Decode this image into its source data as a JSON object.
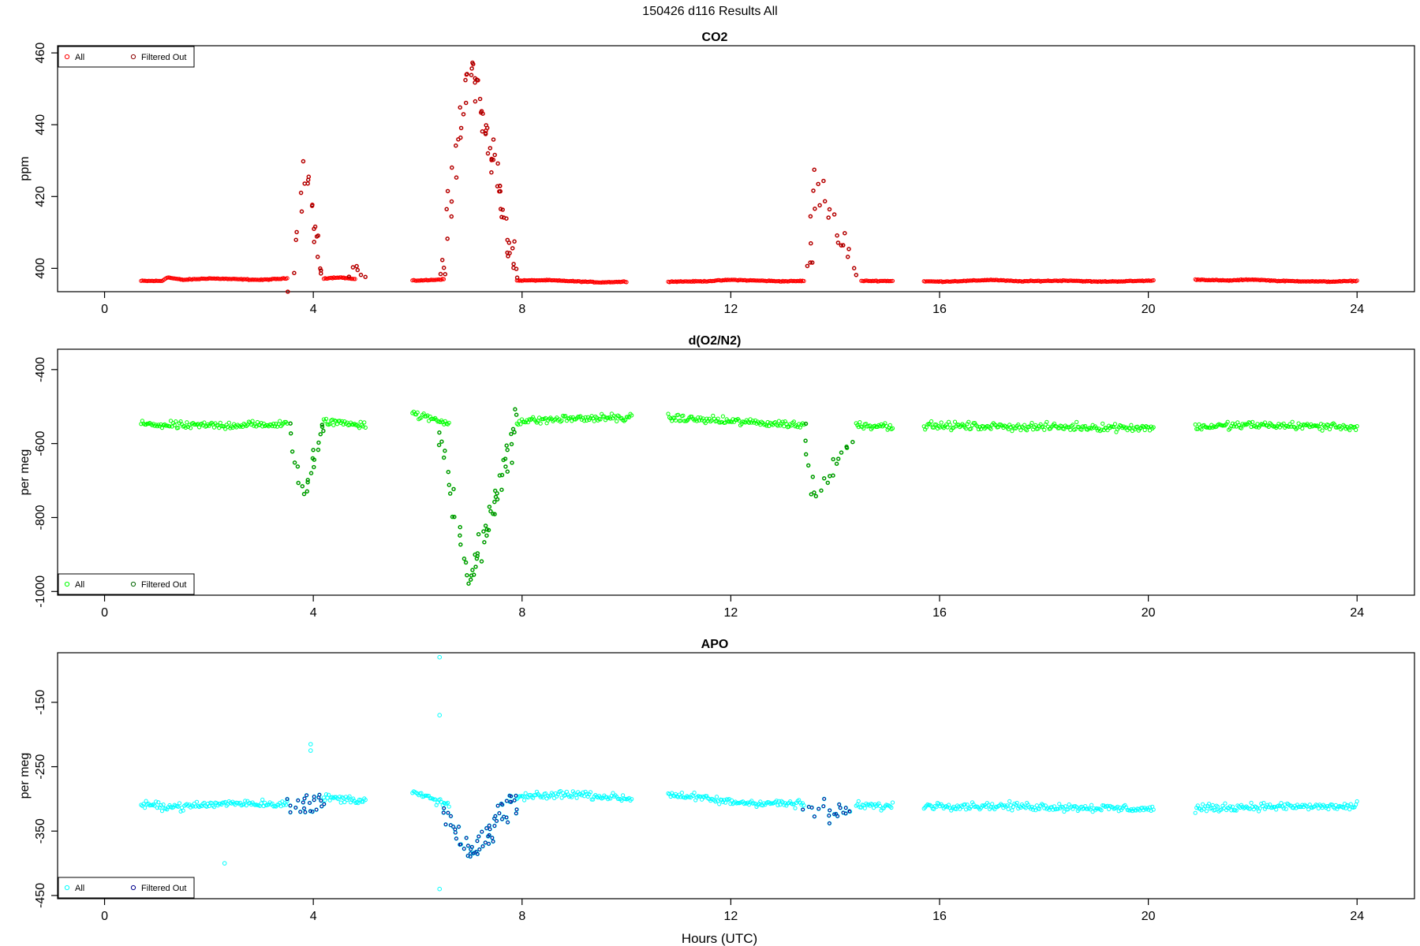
{
  "figure": {
    "title": "150426   d116   Results All",
    "xlabel": "Hours (UTC)"
  },
  "chart_data": [
    {
      "type": "scatter",
      "title": "CO2",
      "ylabel": "ppm",
      "xlim": [
        -0.9,
        25.1
      ],
      "ylim": [
        393.5,
        462
      ],
      "xticks": [
        0,
        4,
        8,
        12,
        16,
        20,
        24
      ],
      "yticks": [
        400,
        420,
        440,
        460
      ],
      "legend_position": "top-left",
      "colors": {
        "all": "#ff0000",
        "filtered": "#8b0000"
      },
      "series": [
        {
          "name": "All",
          "marker": "open-circle",
          "color": "#ff0000"
        },
        {
          "name": "Filtered Out",
          "marker": "open-circle",
          "color": "#8b0000"
        }
      ],
      "baseline_segments": [
        {
          "x": [
            0.7,
            1.1,
            1.2,
            1.5,
            2.0,
            2.5,
            3.0,
            3.5
          ],
          "y": [
            396.5,
            396.5,
            397.5,
            396.8,
            397.2,
            397.0,
            396.8,
            397.2
          ]
        },
        {
          "x": [
            4.2,
            4.5,
            4.8
          ],
          "y": [
            397.2,
            397.5,
            397.0
          ]
        },
        {
          "x": [
            5.9,
            6.2,
            6.5
          ],
          "y": [
            396.6,
            396.7,
            397.0
          ]
        },
        {
          "x": [
            7.9,
            8.5,
            9.0,
            9.5,
            10.0
          ],
          "y": [
            396.6,
            396.7,
            396.4,
            396.1,
            396.3
          ]
        },
        {
          "x": [
            10.8,
            11.5,
            12.0,
            12.5,
            13.0,
            13.4
          ],
          "y": [
            396.3,
            396.4,
            396.8,
            396.6,
            396.4,
            396.5
          ]
        },
        {
          "x": [
            14.5,
            15.1
          ],
          "y": [
            396.5,
            396.5
          ]
        },
        {
          "x": [
            15.7,
            16.0,
            16.5,
            17.0,
            17.5,
            18.0,
            18.5,
            19.0,
            19.5,
            20.1
          ],
          "y": [
            396.4,
            396.3,
            396.5,
            396.8,
            396.4,
            396.5,
            396.6,
            396.3,
            396.4,
            396.6
          ]
        },
        {
          "x": [
            20.9,
            21.5,
            22.0,
            22.5,
            23.0,
            23.5,
            24.0
          ],
          "y": [
            396.9,
            396.6,
            396.9,
            396.5,
            396.4,
            396.3,
            396.5
          ]
        }
      ],
      "episodes": [
        {
          "x": [
            3.55,
            3.7
          ],
          "y": [
            397,
            422
          ],
          "peak": 3.85,
          "ypeak": 428,
          "end": 4.15,
          "yend": 397,
          "n": 22,
          "spread": 6
        },
        {
          "x": [
            4.7,
            4.8
          ],
          "y": [
            397,
            402
          ],
          "peak": 4.8,
          "ypeak": 402,
          "end": 5.0,
          "yend": 397,
          "n": 6,
          "spread": 2
        },
        {
          "x": [
            6.45,
            6.6
          ],
          "y": [
            397,
            420
          ],
          "peak": 7.0,
          "ypeak": 458,
          "end": 7.9,
          "yend": 397,
          "n": 70,
          "spread": 7
        },
        {
          "x": [
            13.5,
            13.6
          ],
          "y": [
            397,
            410
          ],
          "peak": 13.6,
          "ypeak": 424,
          "end": 14.4,
          "yend": 399,
          "n": 24,
          "spread": 5
        }
      ]
    },
    {
      "type": "scatter",
      "title": "d(O2/N2)",
      "ylabel": "per meg",
      "xlim": [
        -0.9,
        25.1
      ],
      "ylim": [
        -1010,
        -345
      ],
      "xticks": [
        0,
        4,
        8,
        12,
        16,
        20,
        24
      ],
      "yticks": [
        -400,
        -600,
        -800,
        -1000
      ],
      "legend_position": "bottom-left",
      "colors": {
        "all": "#00ff00",
        "filtered": "#006400"
      },
      "series": [
        {
          "name": "All",
          "marker": "open-circle",
          "color": "#00ff00"
        },
        {
          "name": "Filtered Out",
          "marker": "open-circle",
          "color": "#006400"
        }
      ],
      "baseline_segments": [
        {
          "x": [
            0.7,
            1.5,
            2.5,
            3.5
          ],
          "y": [
            -548,
            -552,
            -550,
            -548
          ]
        },
        {
          "x": [
            4.2,
            5.0
          ],
          "y": [
            -540,
            -548
          ]
        },
        {
          "x": [
            5.9,
            6.6
          ],
          "y": [
            -520,
            -545
          ]
        },
        {
          "x": [
            7.9,
            9.0,
            10.1
          ],
          "y": [
            -540,
            -532,
            -530
          ]
        },
        {
          "x": [
            10.8,
            12.0,
            13.4
          ],
          "y": [
            -530,
            -540,
            -550
          ]
        },
        {
          "x": [
            14.4,
            15.1
          ],
          "y": [
            -550,
            -552
          ]
        },
        {
          "x": [
            15.7,
            18.0,
            20.1
          ],
          "y": [
            -552,
            -555,
            -557
          ]
        },
        {
          "x": [
            20.9,
            22.0,
            24.0
          ],
          "y": [
            -555,
            -550,
            -555
          ]
        }
      ],
      "episodes": [
        {
          "x": [
            3.55,
            3.7
          ],
          "y": [
            -560,
            -700
          ],
          "peak": 3.8,
          "ypeak": -750,
          "end": 4.2,
          "yend": -540,
          "n": 22,
          "spread": 30
        },
        {
          "x": [
            6.4,
            6.7
          ],
          "y": [
            -560,
            -760
          ],
          "peak": 7.0,
          "ypeak": -980,
          "end": 7.9,
          "yend": -545,
          "n": 60,
          "spread": 45
        },
        {
          "x": [
            13.4,
            13.6
          ],
          "y": [
            -550,
            -700
          ],
          "peak": 13.6,
          "ypeak": -750,
          "end": 14.3,
          "yend": -590,
          "n": 20,
          "spread": 25
        }
      ]
    },
    {
      "type": "scatter",
      "title": "APO",
      "ylabel": "per meg",
      "xlim": [
        -0.9,
        25.1
      ],
      "ylim": [
        -455,
        -73
      ],
      "xticks": [
        0,
        4,
        8,
        12,
        16,
        20,
        24
      ],
      "yticks": [
        -150,
        -250,
        -350,
        -450
      ],
      "legend_position": "bottom-left",
      "colors": {
        "all": "#00ffff",
        "filtered": "#00008b"
      },
      "series": [
        {
          "name": "All",
          "marker": "open-circle",
          "color": "#00ffff"
        },
        {
          "name": "Filtered Out",
          "marker": "open-circle",
          "color": "#00008b"
        }
      ],
      "baseline_segments": [
        {
          "x": [
            0.7,
            1.5,
            2.5,
            3.5
          ],
          "y": [
            -310,
            -312,
            -306,
            -308
          ]
        },
        {
          "x": [
            4.2,
            5.0
          ],
          "y": [
            -298,
            -302
          ]
        },
        {
          "x": [
            5.9,
            6.6
          ],
          "y": [
            -290,
            -310
          ]
        },
        {
          "x": [
            7.9,
            9.0,
            10.1
          ],
          "y": [
            -298,
            -292,
            -300
          ]
        },
        {
          "x": [
            10.8,
            12.0,
            13.4
          ],
          "y": [
            -292,
            -305,
            -308
          ]
        },
        {
          "x": [
            14.4,
            15.1
          ],
          "y": [
            -310,
            -312
          ]
        },
        {
          "x": [
            15.7,
            18.0,
            20.1
          ],
          "y": [
            -310,
            -312,
            -316
          ]
        },
        {
          "x": [
            20.9,
            22.0,
            24.0
          ],
          "y": [
            -315,
            -312,
            -312
          ]
        }
      ],
      "episodes": [
        {
          "x": [
            3.5,
            3.65
          ],
          "y": [
            -310,
            -340
          ],
          "peak": 3.8,
          "ypeak": -320,
          "end": 4.2,
          "yend": -300,
          "n": 22,
          "spread": 22
        },
        {
          "x": [
            6.5,
            6.7
          ],
          "y": [
            -320,
            -370
          ],
          "peak": 7.0,
          "ypeak": -390,
          "end": 7.9,
          "yend": -300,
          "n": 60,
          "spread": 25
        },
        {
          "x": [
            13.4,
            13.6
          ],
          "y": [
            -310,
            -330
          ],
          "peak": 13.8,
          "ypeak": -320,
          "end": 14.3,
          "yend": -310,
          "n": 20,
          "spread": 20
        }
      ],
      "extra_points": [
        {
          "x": 6.42,
          "y": -80
        },
        {
          "x": 6.42,
          "y": -170
        },
        {
          "x": 6.42,
          "y": -440
        },
        {
          "x": 2.3,
          "y": -400
        },
        {
          "x": 3.95,
          "y": -215
        },
        {
          "x": 3.95,
          "y": -225
        }
      ]
    }
  ]
}
